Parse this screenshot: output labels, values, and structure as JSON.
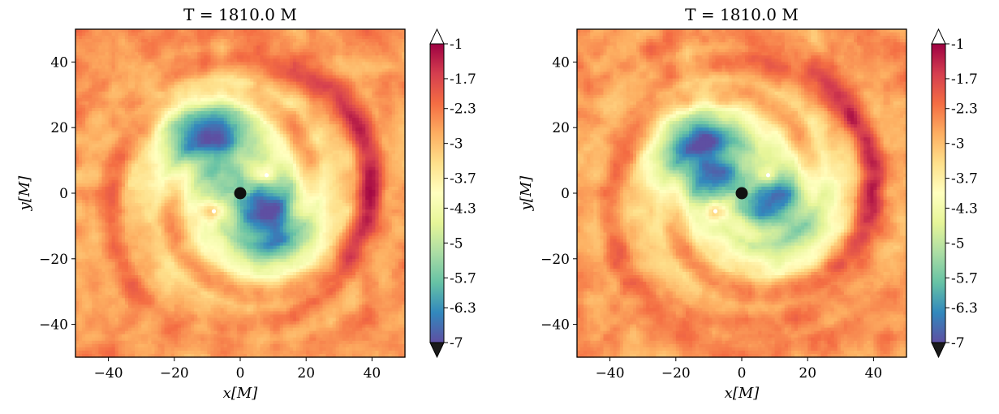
{
  "chart_data": [
    {
      "type": "heatmap",
      "title": "T = 1810.0 M",
      "xlabel": "x[M]",
      "ylabel": "y[M]",
      "xlim": [
        -50,
        50
      ],
      "ylim": [
        -50,
        50
      ],
      "xticks": [
        -40,
        -20,
        0,
        20,
        40
      ],
      "yticks": [
        -40,
        -20,
        0,
        20,
        40
      ],
      "xtick_labels": [
        "−40",
        "−20",
        "0",
        "20",
        "40"
      ],
      "ytick_labels": [
        "−40",
        "−20",
        "0",
        "20",
        "40"
      ],
      "colorbar": {
        "range": [
          -7,
          -1
        ],
        "ticks": [
          -1,
          -1.7,
          -2.3,
          -3,
          -3.7,
          -4.3,
          -5,
          -5.7,
          -6.3,
          -7
        ],
        "tick_labels": [
          "-1",
          "-1.7",
          "-2.3",
          "-3",
          "-3.7",
          "-4.3",
          "-5",
          "-5.7",
          "-6.3",
          "-7"
        ],
        "colormap": "Spectral_r",
        "extend": "both"
      },
      "central_object": {
        "x": 0,
        "y": 0
      },
      "secondary_objects": [
        {
          "x": 8,
          "y": 5.5
        },
        {
          "x": -8,
          "y": -5.5
        }
      ],
      "features": {
        "background_level": -2.4,
        "low_density_regions": [
          {
            "cx": -10,
            "cy": 17,
            "level": -5.9
          },
          {
            "cx": 9,
            "cy": -9,
            "level": -6.0
          }
        ],
        "spiral_arms": 2
      }
    },
    {
      "type": "heatmap",
      "title": "T = 1810.0 M",
      "xlabel": "x[M]",
      "ylabel": "y[M]",
      "xlim": [
        -50,
        50
      ],
      "ylim": [
        -50,
        50
      ],
      "xticks": [
        -40,
        -20,
        0,
        20,
        40
      ],
      "yticks": [
        -40,
        -20,
        0,
        20,
        40
      ],
      "xtick_labels": [
        "−40",
        "−20",
        "0",
        "20",
        "40"
      ],
      "ytick_labels": [
        "−40",
        "−20",
        "0",
        "20",
        "40"
      ],
      "colorbar": {
        "range": [
          -7,
          -1
        ],
        "ticks": [
          -1,
          -1.7,
          -2.3,
          -3,
          -3.7,
          -4.3,
          -5,
          -5.7,
          -6.3,
          -7
        ],
        "tick_labels": [
          "-1",
          "-1.7",
          "-2.3",
          "-3",
          "-3.7",
          "-4.3",
          "-5",
          "-5.7",
          "-6.3",
          "-7"
        ],
        "colormap": "Spectral_r",
        "extend": "both"
      },
      "central_object": {
        "x": 0,
        "y": 0
      },
      "secondary_objects": [
        {
          "x": 8,
          "y": 5.5
        },
        {
          "x": -8,
          "y": -5.5
        }
      ],
      "features": {
        "background_level": -2.4,
        "low_density_regions": [
          {
            "cx": -12,
            "cy": 12,
            "level": -6.1
          },
          {
            "cx": 12,
            "cy": -5,
            "level": -5.3
          }
        ],
        "spiral_arms": 2
      }
    }
  ]
}
